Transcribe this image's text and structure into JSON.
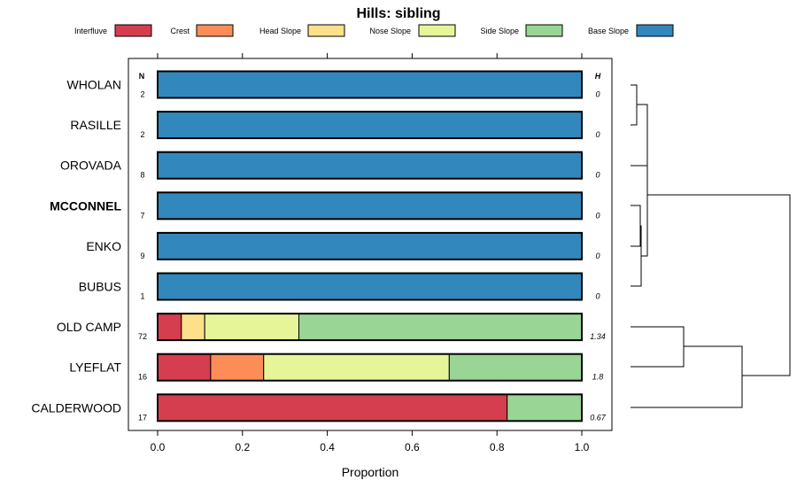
{
  "chart_data": {
    "type": "bar",
    "stacked": true,
    "orientation": "horizontal",
    "title": "Hills: sibling",
    "xlabel": "Proportion",
    "xlim": [
      0,
      1
    ],
    "x_ticks": [
      "0.0",
      "0.2",
      "0.4",
      "0.6",
      "0.8",
      "1.0"
    ],
    "n_header": "N",
    "h_header": "H",
    "legend": [
      {
        "name": "Interfluve",
        "color": "#d53e4f"
      },
      {
        "name": "Crest",
        "color": "#fc8d59"
      },
      {
        "name": "Head Slope",
        "color": "#fee08b"
      },
      {
        "name": "Nose Slope",
        "color": "#e6f598"
      },
      {
        "name": "Side Slope",
        "color": "#99d594"
      },
      {
        "name": "Base Slope",
        "color": "#3288bd"
      }
    ],
    "rows": [
      {
        "name": "WHOLAN",
        "n": "2",
        "h": "0",
        "bold": false,
        "values": [
          0,
          0,
          0,
          0,
          0,
          1
        ]
      },
      {
        "name": "RASILLE",
        "n": "2",
        "h": "0",
        "bold": false,
        "values": [
          0,
          0,
          0,
          0,
          0,
          1
        ]
      },
      {
        "name": "OROVADA",
        "n": "8",
        "h": "0",
        "bold": false,
        "values": [
          0,
          0,
          0,
          0,
          0,
          1
        ]
      },
      {
        "name": "MCCONNEL",
        "n": "7",
        "h": "0",
        "bold": true,
        "values": [
          0,
          0,
          0,
          0,
          0,
          1
        ]
      },
      {
        "name": "ENKO",
        "n": "9",
        "h": "0",
        "bold": false,
        "values": [
          0,
          0,
          0,
          0,
          0,
          1
        ]
      },
      {
        "name": "BUBUS",
        "n": "1",
        "h": "0",
        "bold": false,
        "values": [
          0,
          0,
          0,
          0,
          0,
          1
        ]
      },
      {
        "name": "OLD CAMP",
        "n": "72",
        "h": "1.34",
        "bold": false,
        "values": [
          0.056,
          0.0,
          0.055,
          0.222,
          0.667,
          0
        ]
      },
      {
        "name": "LYEFLAT",
        "n": "16",
        "h": "1.8",
        "bold": false,
        "values": [
          0.125,
          0.125,
          0.0,
          0.4375,
          0.3125,
          0
        ]
      },
      {
        "name": "CALDERWOOD",
        "n": "17",
        "h": "0.67",
        "bold": false,
        "values": [
          0.824,
          0.0,
          0.0,
          0.0,
          0.176,
          0
        ]
      }
    ],
    "grid": false,
    "legend_position": "top"
  }
}
